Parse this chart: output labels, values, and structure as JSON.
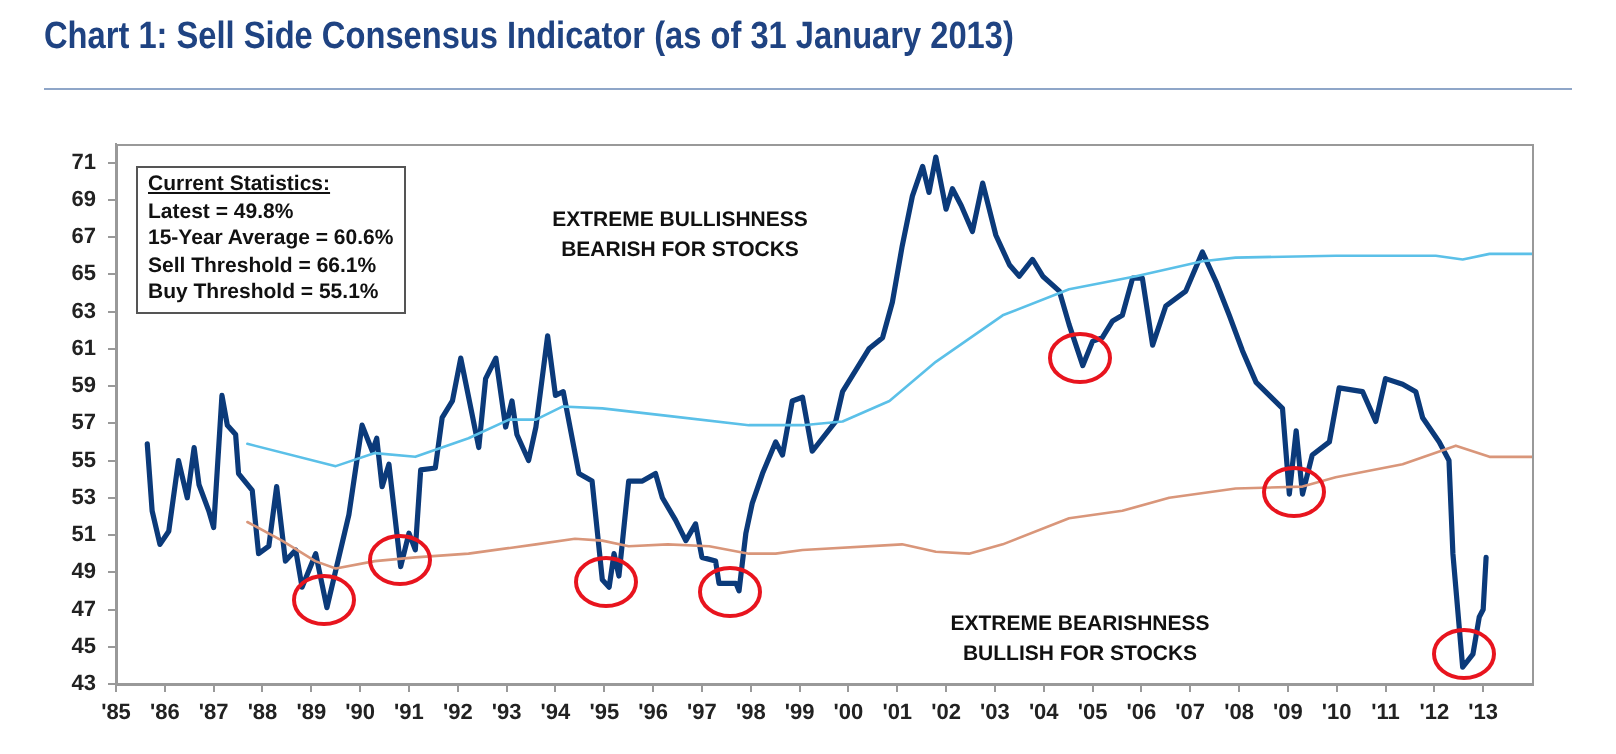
{
  "chart_data": {
    "type": "line",
    "title": "Chart 1: Sell Side Consensus Indicator (as of 31 January 2013)",
    "xlim": [
      1985,
      2014
    ],
    "xticks": [
      {
        "value": 1985,
        "label": "'85"
      },
      {
        "value": 1986,
        "label": "'86"
      },
      {
        "value": 1987,
        "label": "'87"
      },
      {
        "value": 1988,
        "label": "'88"
      },
      {
        "value": 1989,
        "label": "'89"
      },
      {
        "value": 1990,
        "label": "'90"
      },
      {
        "value": 1991,
        "label": "'91"
      },
      {
        "value": 1992,
        "label": "'92"
      },
      {
        "value": 1993,
        "label": "'93"
      },
      {
        "value": 1994,
        "label": "'94"
      },
      {
        "value": 1995,
        "label": "'95"
      },
      {
        "value": 1996,
        "label": "'96"
      },
      {
        "value": 1997,
        "label": "'97"
      },
      {
        "value": 1998,
        "label": "'98"
      },
      {
        "value": 1999,
        "label": "'99"
      },
      {
        "value": 2000,
        "label": "'00"
      },
      {
        "value": 2001,
        "label": "'01"
      },
      {
        "value": 2002,
        "label": "'02"
      },
      {
        "value": 2003,
        "label": "'03"
      },
      {
        "value": 2004,
        "label": "'04"
      },
      {
        "value": 2005,
        "label": "'05"
      },
      {
        "value": 2006,
        "label": "'06"
      },
      {
        "value": 2007,
        "label": "'07"
      },
      {
        "value": 2008,
        "label": "'08"
      },
      {
        "value": 2009,
        "label": "'09"
      },
      {
        "value": 2010,
        "label": "'10"
      },
      {
        "value": 2011,
        "label": "'11"
      },
      {
        "value": 2012,
        "label": "'12"
      },
      {
        "value": 2013,
        "label": "'13"
      }
    ],
    "ylim": [
      43,
      72
    ],
    "yticks": [
      43,
      45,
      47,
      49,
      51,
      53,
      55,
      57,
      59,
      61,
      63,
      65,
      67,
      69,
      71
    ],
    "grid": false,
    "legend": false,
    "marker": "none",
    "line_style": "solid",
    "annotations": [
      "Current Statistics:",
      "Latest = 49.8%",
      "15-Year Average = 60.6%",
      "Sell Threshold = 66.1%",
      "Buy Threshold = 55.1%",
      "EXTREME BULLISHNESS\nBEARISH FOR STOCKS",
      "EXTREME BEARISHNESS\nBULLISH FOR STOCKS"
    ],
    "series": [
      {
        "color": "#5bc0e8",
        "x": [
          1987.69,
          1989.5,
          1990.3,
          1991.13,
          1992.22,
          1993.05,
          1993.6,
          1994.14,
          1994.96,
          1996.3,
          1997.96,
          1999.06,
          1999.88,
          2000.84,
          2001.79,
          2003.16,
          2004.52,
          2005.89,
          2007.25,
          2007.93,
          2009.98,
          2012.03,
          2012.58,
          2013.13,
          2014.0
        ],
        "values": [
          55.9,
          54.7,
          55.4,
          55.2,
          56.2,
          57.2,
          57.2,
          57.9,
          57.8,
          57.4,
          56.9,
          56.9,
          57.1,
          58.2,
          60.3,
          62.8,
          64.2,
          64.9,
          65.7,
          65.9,
          66.0,
          66.0,
          65.8,
          66.1,
          66.1
        ]
      },
      {
        "color": "#d9967a",
        "x": [
          1987.69,
          1988.4,
          1989.08,
          1989.5,
          1990.3,
          1991.13,
          1992.22,
          1993.6,
          1994.4,
          1994.96,
          1995.5,
          1996.3,
          1997.15,
          1997.96,
          1998.51,
          1999.06,
          2001.1,
          2001.79,
          2002.47,
          2003.16,
          2004.52,
          2005.61,
          2006.57,
          2007.93,
          2009.3,
          2009.98,
          2011.35,
          2012.44,
          2013.13,
          2014.0
        ],
        "values": [
          51.7,
          50.7,
          49.6,
          49.2,
          49.6,
          49.8,
          50.0,
          50.5,
          50.8,
          50.7,
          50.4,
          50.5,
          50.4,
          50.0,
          50.0,
          50.2,
          50.5,
          50.1,
          50.0,
          50.5,
          51.9,
          52.3,
          53.0,
          53.5,
          53.6,
          54.1,
          54.8,
          55.8,
          55.2,
          55.2
        ]
      },
      {
        "color": "#0b3a7a",
        "x": [
          1985.64,
          1985.74,
          1985.9,
          1986.08,
          1986.28,
          1986.46,
          1986.6,
          1986.7,
          1986.9,
          1987.0,
          1987.17,
          1987.28,
          1987.45,
          1987.51,
          1987.79,
          1987.92,
          1988.13,
          1988.29,
          1988.47,
          1988.68,
          1988.81,
          1989.09,
          1989.32,
          1989.77,
          1990.04,
          1990.25,
          1990.34,
          1990.45,
          1990.59,
          1990.83,
          1991.0,
          1991.13,
          1991.24,
          1991.54,
          1991.68,
          1991.89,
          1992.06,
          1992.43,
          1992.57,
          1992.78,
          1992.98,
          1993.11,
          1993.21,
          1993.45,
          1993.6,
          1993.84,
          1994.0,
          1994.16,
          1994.48,
          1994.75,
          1994.96,
          1995.1,
          1995.2,
          1995.3,
          1995.5,
          1995.78,
          1996.05,
          1996.19,
          1996.46,
          1996.67,
          1996.87,
          1997.0,
          1997.28,
          1997.35,
          1997.7,
          1997.76,
          1997.9,
          1998.03,
          1998.24,
          1998.51,
          1998.65,
          1998.85,
          1999.06,
          1999.26,
          1999.74,
          1999.88,
          2000.42,
          2000.7,
          2000.9,
          2001.1,
          2001.31,
          2001.52,
          2001.65,
          2001.79,
          2002.0,
          2002.13,
          2002.31,
          2002.54,
          2002.75,
          2003.02,
          2003.3,
          2003.5,
          2003.77,
          2003.98,
          2004.32,
          2004.52,
          2004.8,
          2005.0,
          2005.2,
          2005.41,
          2005.61,
          2005.82,
          2006.02,
          2006.23,
          2006.5,
          2006.91,
          2007.25,
          2007.53,
          2007.8,
          2008.07,
          2008.35,
          2008.62,
          2008.89,
          2009.03,
          2009.17,
          2009.3,
          2009.5,
          2009.85,
          2010.05,
          2010.53,
          2010.8,
          2011.0,
          2011.35,
          2011.62,
          2011.76,
          2012.1,
          2012.3,
          2012.38,
          2012.58,
          2012.79,
          2012.92,
          2013.0,
          2013.06
        ],
        "values": [
          55.9,
          52.3,
          50.5,
          51.2,
          55.0,
          53.0,
          55.7,
          53.7,
          52.3,
          51.4,
          58.5,
          56.9,
          56.4,
          54.3,
          53.4,
          50.0,
          50.4,
          53.6,
          49.6,
          50.2,
          48.2,
          50.0,
          47.1,
          52.1,
          56.9,
          55.5,
          56.2,
          53.6,
          54.8,
          49.3,
          51.1,
          50.2,
          54.5,
          54.6,
          57.3,
          58.2,
          60.5,
          55.7,
          59.4,
          60.5,
          56.8,
          58.2,
          56.4,
          55.0,
          56.8,
          61.7,
          58.5,
          58.7,
          54.3,
          53.9,
          48.6,
          48.2,
          50.0,
          48.8,
          53.9,
          53.9,
          54.3,
          53.0,
          51.8,
          50.7,
          51.6,
          49.8,
          49.6,
          48.4,
          48.4,
          48.0,
          51.1,
          52.7,
          54.3,
          56.0,
          55.3,
          58.2,
          58.4,
          55.5,
          57.1,
          58.7,
          61.0,
          61.6,
          63.5,
          66.5,
          69.2,
          70.8,
          69.4,
          71.3,
          68.5,
          69.6,
          68.7,
          67.3,
          69.9,
          67.1,
          65.5,
          64.9,
          65.8,
          64.9,
          64.1,
          62.3,
          60.1,
          61.4,
          61.6,
          62.5,
          62.8,
          64.8,
          64.8,
          61.2,
          63.3,
          64.1,
          66.2,
          64.6,
          62.8,
          60.9,
          59.2,
          58.5,
          57.8,
          53.2,
          56.6,
          53.2,
          55.3,
          56.0,
          58.9,
          58.7,
          57.1,
          59.4,
          59.1,
          58.7,
          57.3,
          56.0,
          55.0,
          50.0,
          43.9,
          44.6,
          46.6,
          47.0,
          49.8
        ]
      }
    ]
  }
}
